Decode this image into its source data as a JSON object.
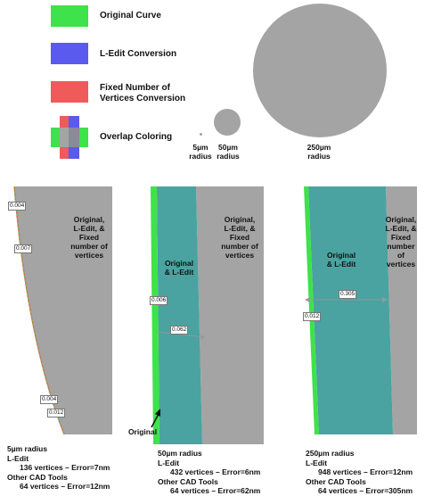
{
  "legend": {
    "original": "Original Curve",
    "ledit": "L-Edit Conversion",
    "fixed_line1": "Fixed Number of",
    "fixed_line2": "Vertices Conversion",
    "overlap": "Overlap Coloring"
  },
  "colors": {
    "green": "#3ee24a",
    "blue": "#5a5aee",
    "red": "#ef5a5a",
    "gray": "#a4a4a4",
    "teal": "#4aa3a0"
  },
  "circles": [
    {
      "line1": "5µm",
      "line2": "radius"
    },
    {
      "line1": "50µm",
      "line2": "radius"
    },
    {
      "line1": "250µm",
      "line2": "radius"
    }
  ],
  "panels": [
    {
      "label_lines": [
        "Original,",
        "L-Edit, &",
        "Fixed",
        "number of",
        "vertices"
      ],
      "measurements": [
        "0.004",
        "0.007",
        "0.004",
        "0.012"
      ],
      "stats": {
        "radius": "5µm radius",
        "ledit": "L-Edit",
        "ledit_detail": "136 vertices – Error=7nm",
        "other": "Other CAD Tools",
        "other_detail": "64 vertices – Error=12nm"
      }
    },
    {
      "label_lines": [
        "Original,",
        "L-Edit, &",
        "Fixed",
        "number of",
        "vertices"
      ],
      "inner_label_lines": [
        "Original",
        "& L-Edit"
      ],
      "measurements": [
        "0.006",
        "0.062"
      ],
      "arrow_label": "Original",
      "stats": {
        "radius": "50µm radius",
        "ledit": "L-Edit",
        "ledit_detail": "432 vertices – Error=6nm",
        "other": "Other CAD Tools",
        "other_detail": "64 vertices – Error=62nm"
      }
    },
    {
      "label_lines": [
        "Original,",
        "L-Edit, & Fixed",
        "number",
        "of",
        "vertices"
      ],
      "inner_label_lines": [
        "Original",
        "& L-Edit"
      ],
      "measurements": [
        "0.305",
        "0.012"
      ],
      "stats": {
        "radius": "250µm radius",
        "ledit": "L-Edit",
        "ledit_detail": "948 vertices – Error=12nm",
        "other": "Other CAD Tools",
        "other_detail": "64 vertices – Error=305nm"
      }
    }
  ]
}
